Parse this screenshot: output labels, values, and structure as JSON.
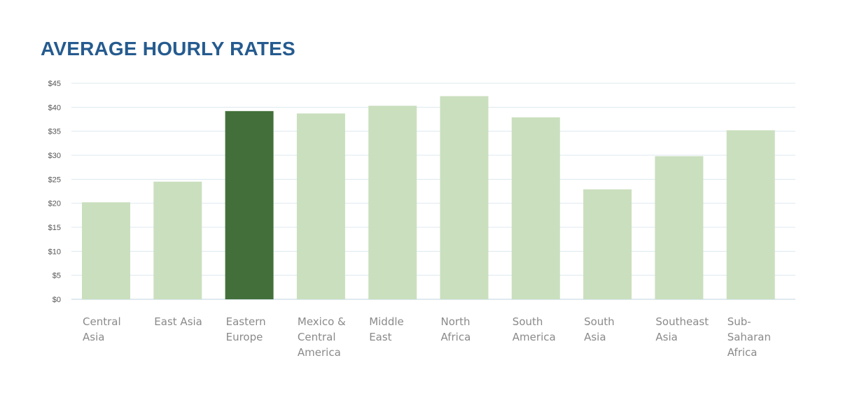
{
  "chart_data": {
    "type": "bar",
    "title": "AVERAGE HOURLY RATES",
    "xlabel": "",
    "ylabel": "",
    "ylim": [
      0,
      45
    ],
    "yticks": [
      0,
      5,
      10,
      15,
      20,
      25,
      30,
      35,
      40,
      45
    ],
    "ytick_labels": [
      "$0",
      "$5",
      "$10",
      "$15",
      "$20",
      "$25",
      "$30",
      "$35",
      "$40",
      "$45"
    ],
    "grid": true,
    "legend": "none",
    "categories": [
      [
        "Central",
        "Asia"
      ],
      [
        "East Asia"
      ],
      [
        "Eastern",
        "Europe"
      ],
      [
        "Mexico &",
        "Central",
        "America"
      ],
      [
        "Middle",
        "East"
      ],
      [
        "North",
        "Africa"
      ],
      [
        "South",
        "America"
      ],
      [
        "South",
        "Asia"
      ],
      [
        "Southeast",
        "Asia"
      ],
      [
        "Sub-",
        "Saharan",
        "Africa"
      ]
    ],
    "values": [
      20.2,
      24.5,
      39.2,
      38.7,
      40.3,
      42.3,
      37.9,
      22.9,
      29.8,
      35.2
    ],
    "highlight_index": 2,
    "colors": {
      "bar": "#cadfbe",
      "highlight": "#43703a",
      "grid": "#dde8ef",
      "axis": "#d3e2eb",
      "title": "#255b8f"
    }
  }
}
